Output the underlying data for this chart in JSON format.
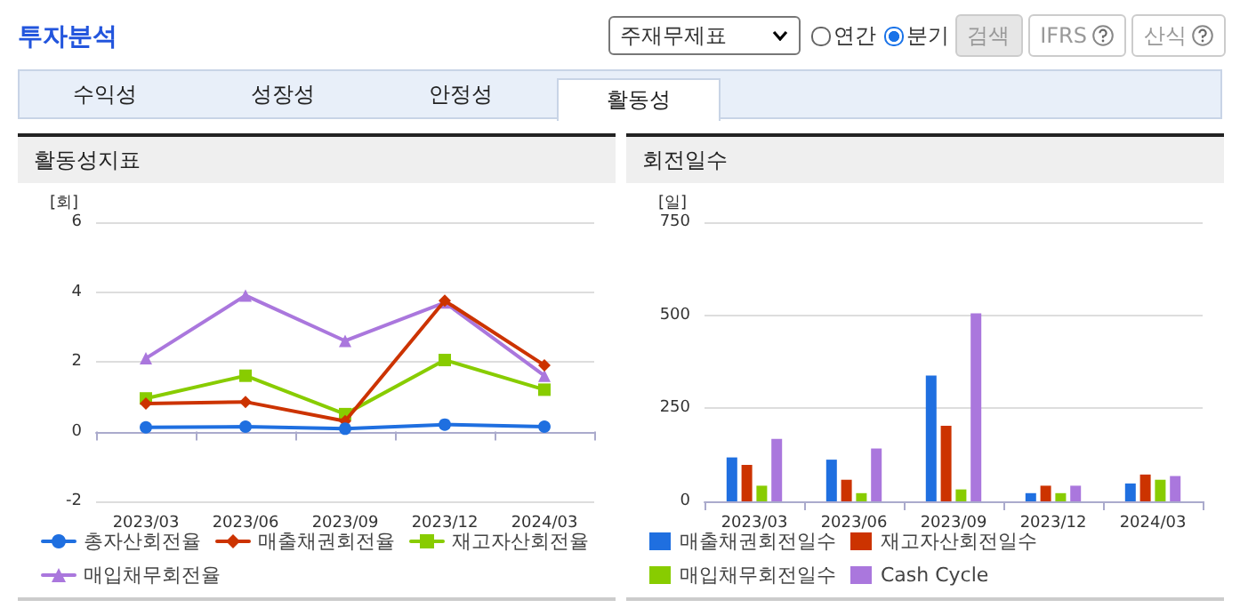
{
  "chart_data": [
    {
      "type": "other",
      "title": "투자분석",
      "annotations": [
        "주재무제표",
        "연간",
        "분기",
        "검색",
        "IFRS",
        "산식",
        "수익성",
        "성장성",
        "안정성",
        "활동성"
      ]
    },
    {
      "type": "line",
      "title": "활동성지표",
      "ylabel": "[회]",
      "categories": [
        "2023/03",
        "2023/06",
        "2023/09",
        "2023/12",
        "2024/03"
      ],
      "ylim": [
        -2,
        6
      ],
      "yticks": [
        -2,
        0,
        2,
        4,
        6
      ],
      "grid": "y",
      "legend": "bottom",
      "line_style": "solid",
      "series": [
        {
          "name": "총자산회전율",
          "color": "#1f6fe0",
          "marker": "circle",
          "values": [
            0.12,
            0.14,
            0.08,
            0.2,
            0.14
          ]
        },
        {
          "name": "매출채권회전율",
          "color": "#cc3300",
          "marker": "diamond",
          "values": [
            0.8,
            0.85,
            0.3,
            3.75,
            1.9
          ]
        },
        {
          "name": "재고자산회전율",
          "color": "#88cc00",
          "marker": "square",
          "values": [
            0.95,
            1.6,
            0.5,
            2.05,
            1.2
          ]
        },
        {
          "name": "매입채무회전율",
          "color": "#aa77dd",
          "marker": "triangle",
          "values": [
            2.1,
            3.9,
            2.6,
            3.7,
            1.6
          ]
        }
      ]
    },
    {
      "type": "bar",
      "title": "회전일수",
      "ylabel": "[일]",
      "categories": [
        "2023/03",
        "2023/06",
        "2023/09",
        "2023/12",
        "2024/03"
      ],
      "ylim": [
        0,
        750
      ],
      "yticks": [
        0,
        250,
        500,
        750
      ],
      "grid": "y",
      "legend": "bottom",
      "series": [
        {
          "name": "매출채권회전일수",
          "color": "#1f6fe0",
          "values": [
            118,
            112,
            338,
            22,
            48
          ]
        },
        {
          "name": "재고자산회전일수",
          "color": "#cc3300",
          "values": [
            98,
            58,
            203,
            42,
            72
          ]
        },
        {
          "name": "매입채무회전일수",
          "color": "#88cc00",
          "values": [
            42,
            22,
            32,
            22,
            58
          ]
        },
        {
          "name": "Cash Cycle",
          "color": "#aa77dd",
          "values": [
            168,
            142,
            505,
            42,
            68
          ]
        }
      ]
    }
  ]
}
